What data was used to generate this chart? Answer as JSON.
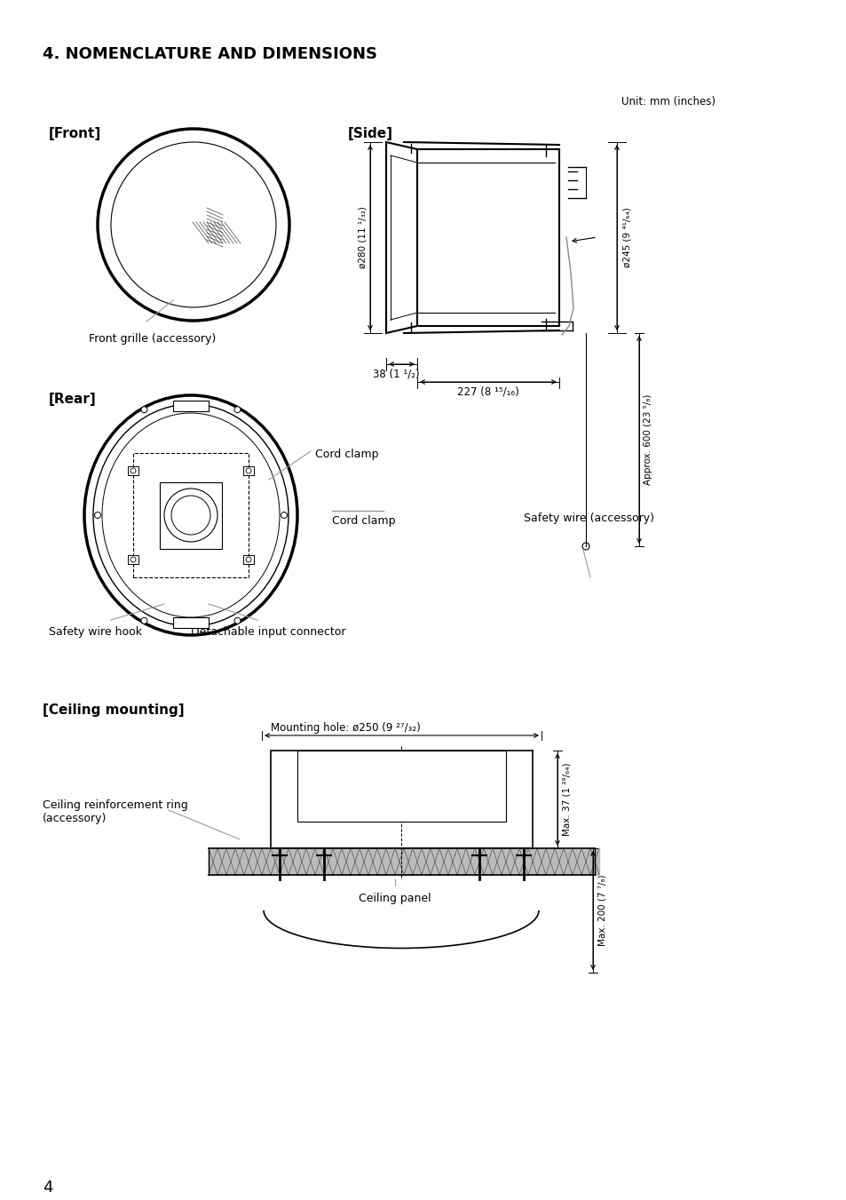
{
  "title": "4. NOMENCLATURE AND DIMENSIONS",
  "unit_label": "Unit: mm (inches)",
  "bg_color": "#ffffff",
  "labels": {
    "front": "[Front]",
    "side": "[Side]",
    "rear": "[Rear]",
    "ceiling": "[Ceiling mounting]",
    "front_grille": "Front grille (accessory)",
    "cord_clamp": "Cord clamp",
    "safety_wire": "Safety wire (accessory)",
    "safety_wire_hook": "Safety wire hook",
    "detachable_input": "Detachable input connector",
    "ceiling_ring": "Ceiling reinforcement ring\n(accessory)",
    "ceiling_panel": "Ceiling panel",
    "mounting_hole": "Mounting hole: ø250 (9 ²⁷/₃₂)"
  },
  "dimensions": {
    "phi280": "ø280 (11 ¹/₃₂)",
    "phi245": "ø245 (9 ⁴¹/₆₄)",
    "dim38": "38 (1 ¹/₂)",
    "dim227": "227 (8 ¹⁵/₁₆)",
    "approx600": "Approx. 600 (23 ⁵/₈)",
    "max37": "Max. 37 (1 ²⁹/₆₄)",
    "max200": "Max. 200 (7 ⁷/₈)"
  },
  "page_number": "4"
}
